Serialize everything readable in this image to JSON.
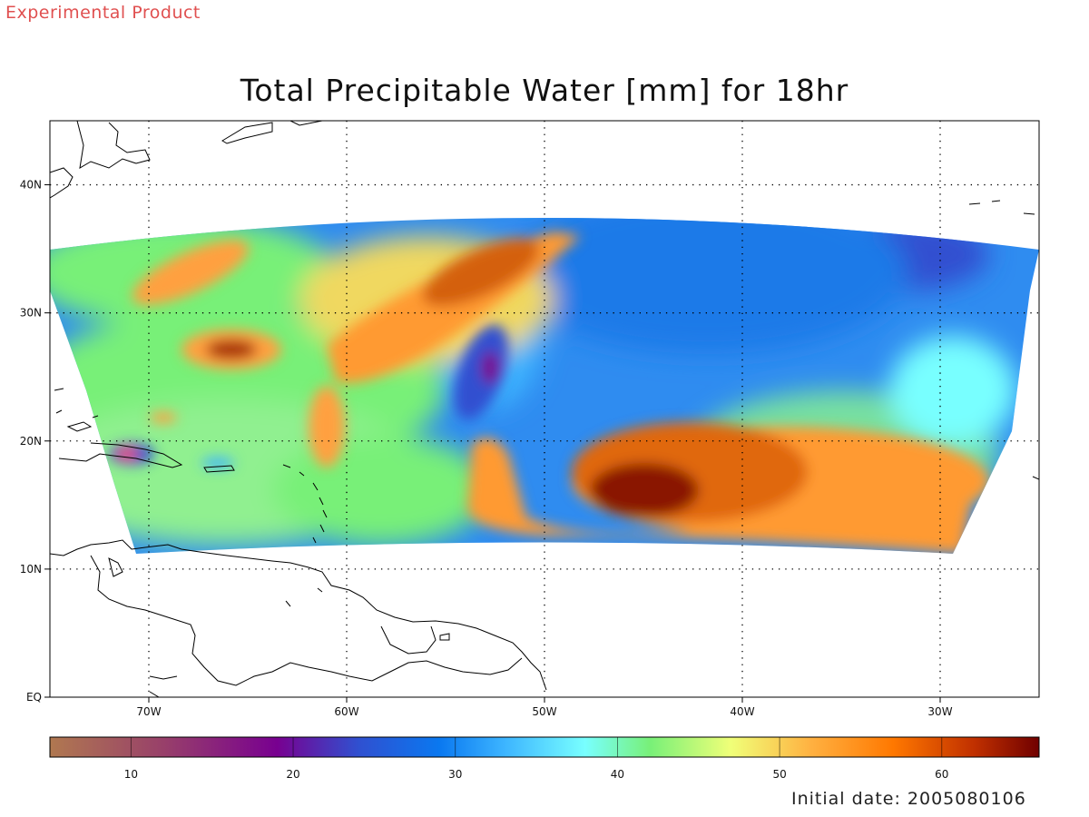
{
  "header": {
    "experimental_label": "Experimental Product"
  },
  "title": "Total Precipitable Water [mm] for 18hr",
  "map": {
    "lon_range": [
      -75,
      -25
    ],
    "lat_range": [
      0,
      45
    ],
    "grid_lines": true,
    "lon_ticks": [
      {
        "value": -70,
        "label": "70W"
      },
      {
        "value": -60,
        "label": "60W"
      },
      {
        "value": -50,
        "label": "50W"
      },
      {
        "value": -40,
        "label": "40W"
      },
      {
        "value": -30,
        "label": "30W"
      }
    ],
    "lat_ticks": [
      {
        "value": 0,
        "label": "EQ"
      },
      {
        "value": 10,
        "label": "10N"
      },
      {
        "value": 20,
        "label": "20N"
      },
      {
        "value": 30,
        "label": "30N"
      },
      {
        "value": 40,
        "label": "40N"
      }
    ]
  },
  "colorbar": {
    "range": [
      5,
      66
    ],
    "ticks": [
      {
        "value": 10,
        "label": "10"
      },
      {
        "value": 20,
        "label": "20"
      },
      {
        "value": 30,
        "label": "30"
      },
      {
        "value": 40,
        "label": "40"
      },
      {
        "value": 50,
        "label": "50"
      },
      {
        "value": 60,
        "label": "60"
      }
    ],
    "stops": [
      {
        "value": 5,
        "color": "#b07850"
      },
      {
        "value": 12,
        "color": "#98406a"
      },
      {
        "value": 19,
        "color": "#780090"
      },
      {
        "value": 24,
        "color": "#3050d0"
      },
      {
        "value": 29,
        "color": "#0a78f0"
      },
      {
        "value": 33,
        "color": "#3cb4ff"
      },
      {
        "value": 38,
        "color": "#78ffff"
      },
      {
        "value": 42,
        "color": "#78f078"
      },
      {
        "value": 47,
        "color": "#f0ff78"
      },
      {
        "value": 52,
        "color": "#ffb040"
      },
      {
        "value": 57,
        "color": "#ff7800"
      },
      {
        "value": 62,
        "color": "#c03000"
      },
      {
        "value": 66,
        "color": "#700000"
      }
    ]
  },
  "footer": {
    "initial_date": "Initial date: 2005080106"
  }
}
